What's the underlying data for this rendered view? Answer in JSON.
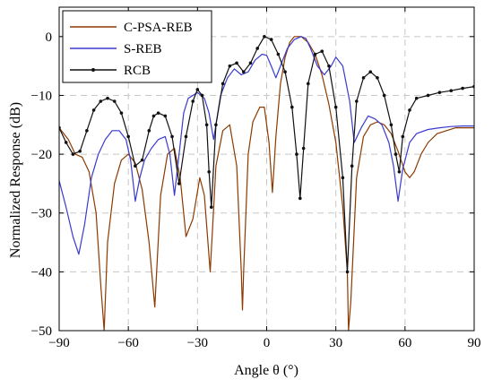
{
  "chart_data": {
    "type": "line",
    "xlabel": "Angle θ (°)",
    "ylabel": "Normalized Response (dB)",
    "xlim": [
      -90,
      90
    ],
    "ylim": [
      -50,
      5
    ],
    "xticks": [
      -90,
      -60,
      -30,
      0,
      30,
      60,
      90
    ],
    "yticks": [
      0,
      -10,
      -20,
      -30,
      -40,
      -50
    ],
    "xtick_labels": [
      "−90",
      "−60",
      "−30",
      "0",
      "30",
      "60",
      "90"
    ],
    "ytick_labels": [
      "0",
      "−10",
      "−20",
      "−30",
      "−40",
      "−50"
    ],
    "grid": true,
    "legend_position": "top-left",
    "series": [
      {
        "name": "C-PSA-REB",
        "color": "#8b3a00",
        "marker": "none",
        "x": [
          -90,
          -86,
          -83,
          -80,
          -77,
          -74,
          -72,
          -70.5,
          -69,
          -66,
          -63,
          -60,
          -57,
          -54,
          -51,
          -48.5,
          -46,
          -43,
          -40,
          -37.5,
          -35,
          -32,
          -29,
          -27,
          -24.5,
          -22,
          -19,
          -16,
          -13,
          -11,
          -10.5,
          -10,
          -8,
          -6,
          -3,
          -1,
          1,
          2.5,
          4,
          6,
          8,
          10,
          12,
          15,
          18,
          21,
          24,
          27,
          30,
          33,
          35,
          35.5,
          36.5,
          39,
          42,
          45,
          48,
          51,
          54,
          57,
          60,
          62,
          64,
          67,
          70,
          74,
          78,
          82,
          86,
          90
        ],
        "y": [
          -15.5,
          -17.5,
          -20,
          -20.5,
          -23,
          -30,
          -42,
          -50,
          -35,
          -25,
          -21,
          -20,
          -21.5,
          -26,
          -35,
          -46,
          -27,
          -20,
          -19,
          -24,
          -34,
          -31,
          -24,
          -27,
          -40,
          -22,
          -16,
          -15,
          -22,
          -40,
          -46.5,
          -40,
          -20,
          -14.5,
          -12,
          -12,
          -18,
          -26.5,
          -17,
          -8,
          -3.5,
          -1,
          0,
          0,
          -1,
          -3,
          -6.5,
          -11.5,
          -18,
          -29,
          -40,
          -50,
          -45,
          -24,
          -17,
          -15,
          -14.5,
          -15,
          -16.5,
          -19.5,
          -23,
          -24,
          -23,
          -20,
          -18,
          -16.5,
          -16,
          -15.5,
          -15.5,
          -15.5
        ]
      },
      {
        "name": "S-REB",
        "color": "#3a3acf",
        "marker": "none",
        "x": [
          -90,
          -87,
          -84,
          -81.5,
          -79,
          -76,
          -73,
          -70,
          -67,
          -64,
          -61,
          -59,
          -57,
          -55,
          -53,
          -50,
          -47,
          -44,
          -42,
          -40,
          -38,
          -36,
          -34,
          -30,
          -27,
          -25,
          -23,
          -20,
          -17,
          -14,
          -11,
          -8,
          -5,
          -2,
          0,
          2,
          4,
          6,
          9,
          12,
          15,
          17,
          19,
          22,
          25,
          28,
          30,
          33,
          36,
          38,
          41,
          44,
          47,
          50,
          53,
          55,
          57,
          59,
          62,
          65,
          70,
          75,
          80,
          85,
          90
        ],
        "y": [
          -24.5,
          -29,
          -34,
          -37,
          -32,
          -24,
          -20,
          -17.5,
          -16,
          -16,
          -17.5,
          -21,
          -28,
          -24,
          -21,
          -19,
          -17.5,
          -17,
          -20,
          -27,
          -20,
          -13,
          -10.5,
          -9.5,
          -10.5,
          -13,
          -17.5,
          -10,
          -7,
          -5.5,
          -6.5,
          -6,
          -4,
          -3,
          -3.2,
          -5,
          -7,
          -5,
          -2,
          -0.5,
          0,
          -0.3,
          -2,
          -5,
          -6.5,
          -5,
          -3.5,
          -5,
          -11,
          -18,
          -15.5,
          -13.5,
          -14,
          -15,
          -18,
          -22,
          -28,
          -22.5,
          -18,
          -16.5,
          -15.8,
          -15.5,
          -15.3,
          -15.2,
          -15.2
        ]
      },
      {
        "name": "RCB",
        "color": "#111111",
        "marker": "dot",
        "x": [
          -90,
          -87,
          -84,
          -81,
          -78,
          -75,
          -72,
          -69,
          -66,
          -63,
          -60,
          -57,
          -54,
          -51,
          -49,
          -47,
          -44,
          -41,
          -38,
          -35,
          -32,
          -30,
          -28,
          -26,
          -25,
          -24,
          -22,
          -19,
          -16,
          -13,
          -10,
          -7,
          -4,
          -1,
          2,
          5,
          8,
          11,
          13,
          14.5,
          16,
          18,
          21,
          24,
          27,
          30,
          33,
          35,
          37,
          39,
          42,
          45,
          48,
          51,
          54,
          56,
          57.5,
          59,
          62,
          65,
          70,
          75,
          80,
          85,
          90
        ],
        "y": [
          -15.5,
          -18,
          -20,
          -19.5,
          -16,
          -12.5,
          -11,
          -10.5,
          -11,
          -13,
          -17,
          -22,
          -21,
          -16,
          -13.5,
          -13,
          -13.5,
          -17,
          -25,
          -17,
          -11,
          -9,
          -10,
          -15,
          -23,
          -29,
          -15,
          -8,
          -5,
          -4.5,
          -6,
          -4.5,
          -2,
          0,
          -0.5,
          -3,
          -6,
          -12,
          -20,
          -27.5,
          -19,
          -8,
          -3,
          -2.5,
          -5,
          -12,
          -24,
          -40,
          -22,
          -11,
          -7,
          -6,
          -7,
          -10,
          -15,
          -20,
          -23,
          -17,
          -12.5,
          -10.5,
          -10,
          -9.5,
          -9.2,
          -8.8,
          -8.5
        ]
      }
    ]
  }
}
